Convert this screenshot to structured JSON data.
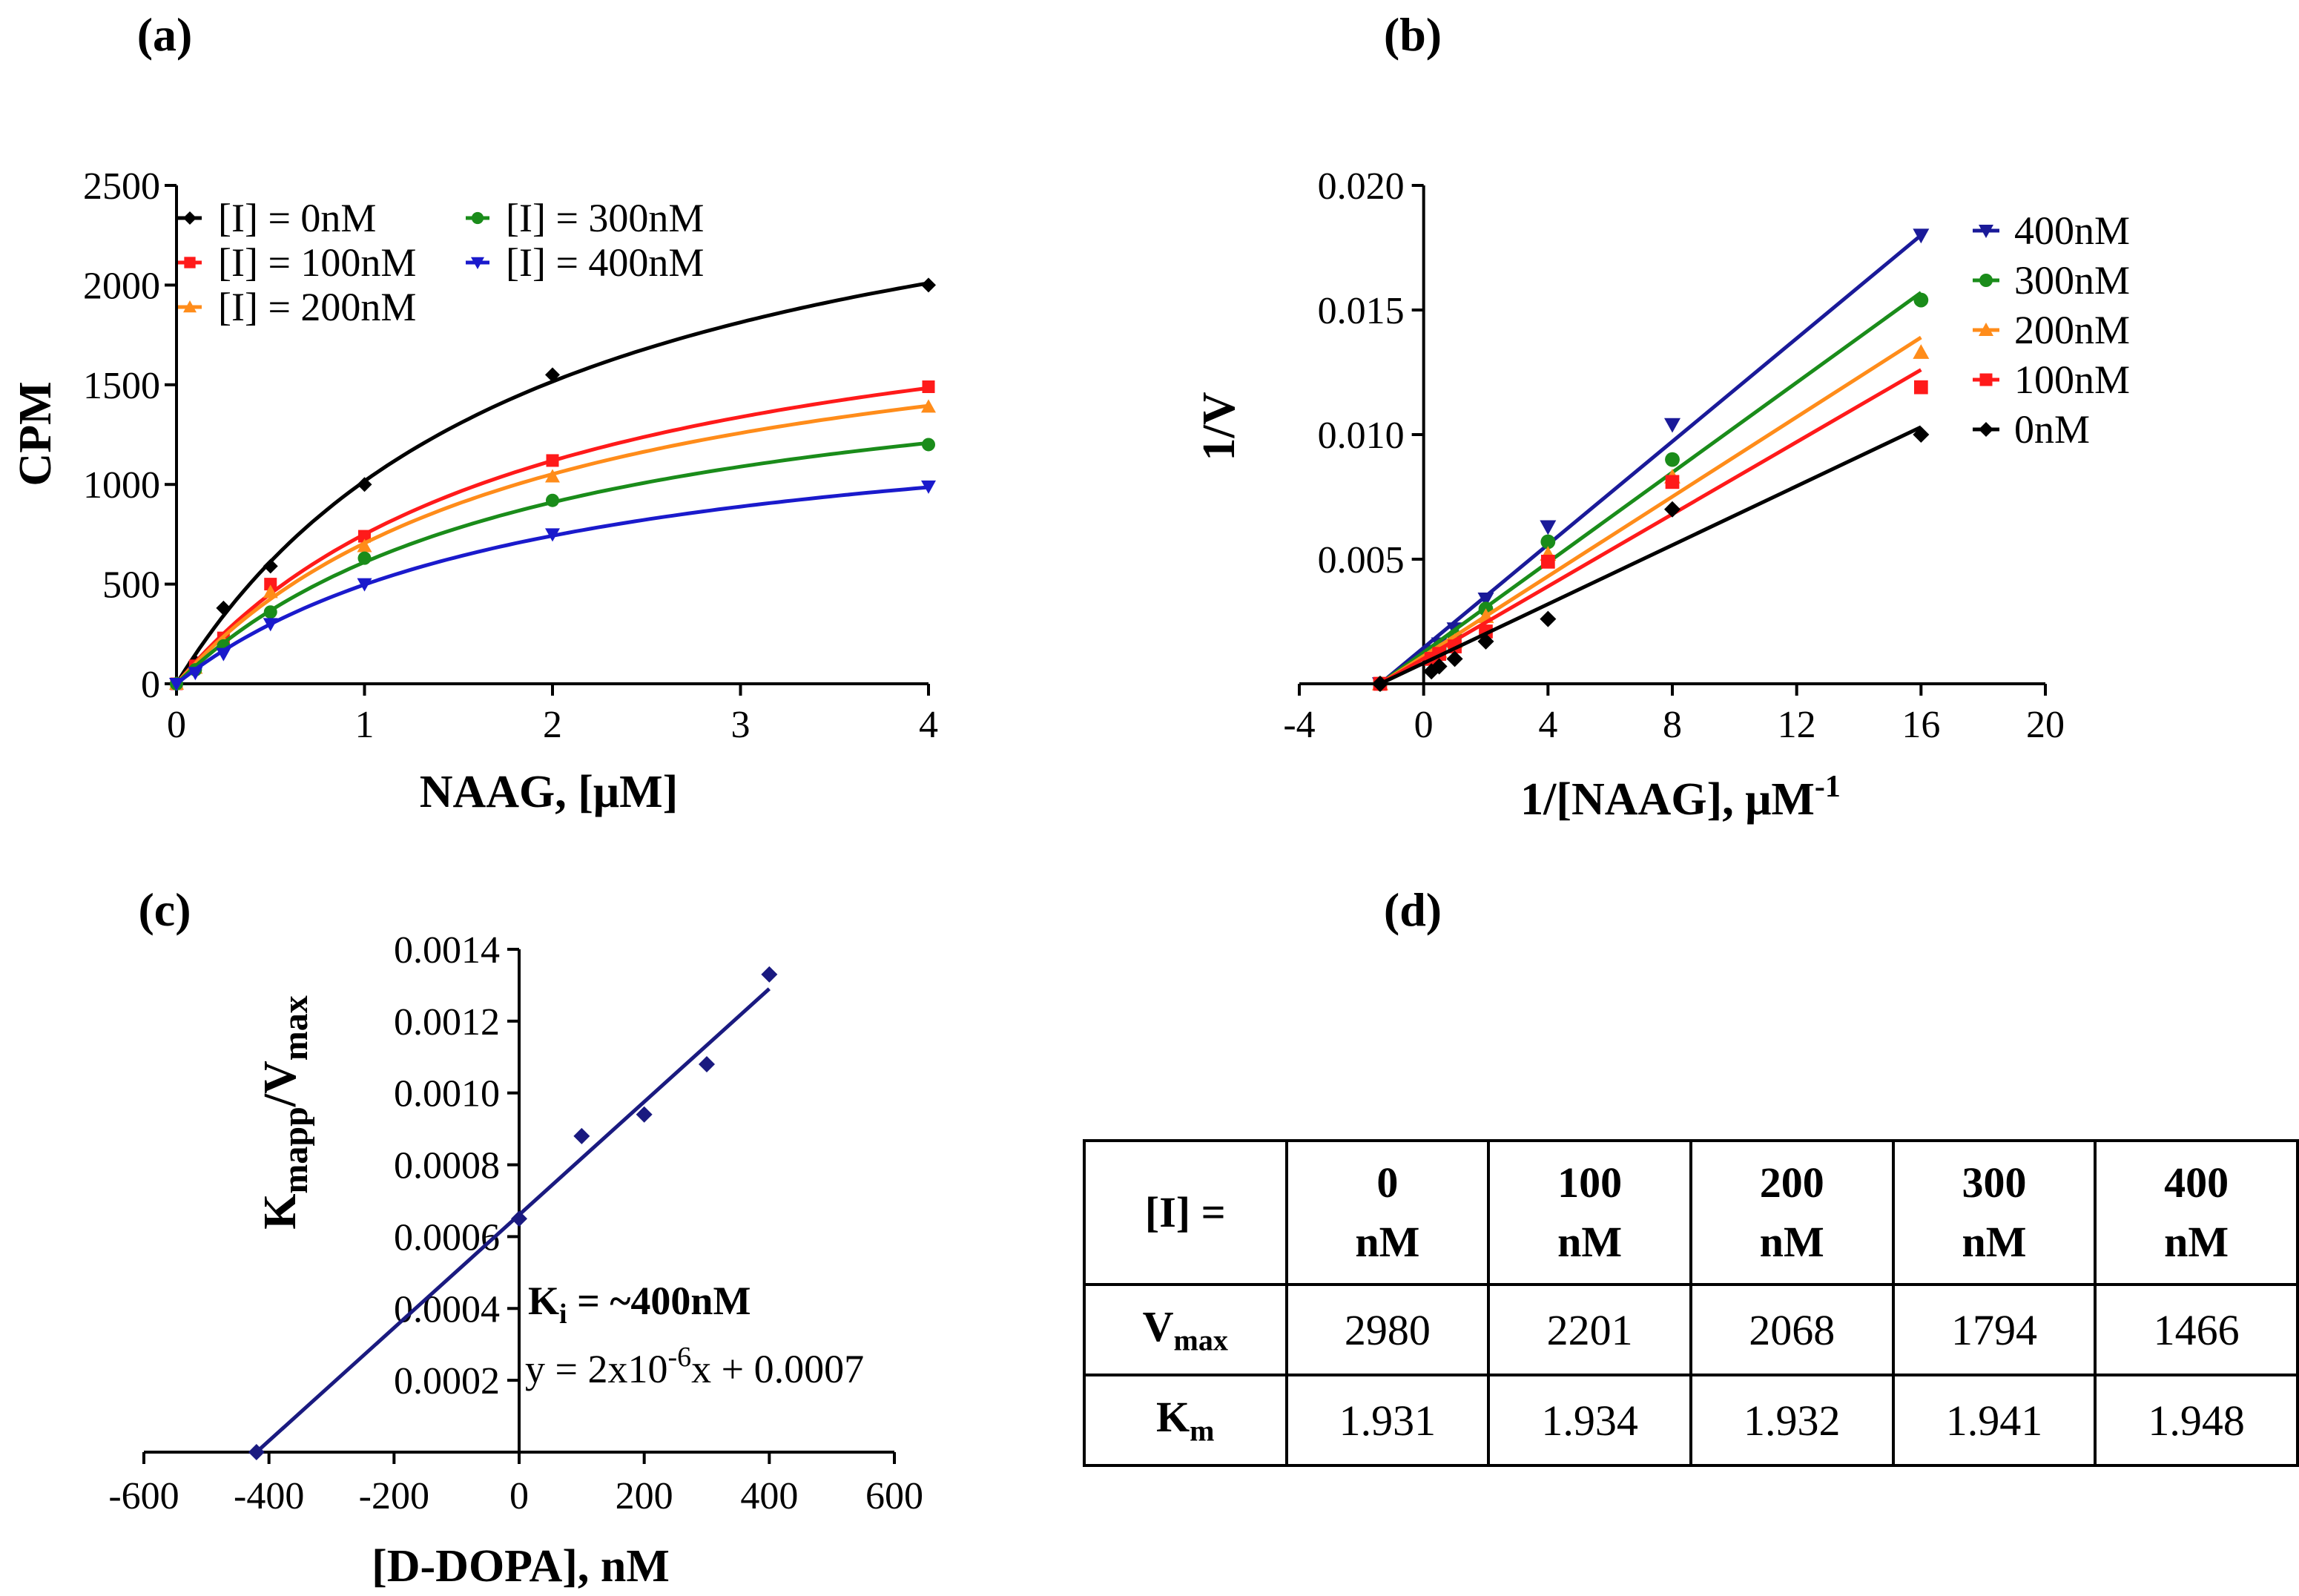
{
  "panels": {
    "a": "(a)",
    "b": "(b)",
    "c": "(c)",
    "d": "(d)"
  },
  "chart_data": [
    {
      "id": "a",
      "type": "line",
      "xlabel": "NAAG, [μM]",
      "ylabel": "CPM",
      "xlim": [
        0,
        4
      ],
      "ylim": [
        0,
        2500
      ],
      "xticks": [
        0,
        1,
        2,
        3,
        4
      ],
      "yticks": [
        0,
        500,
        1000,
        1500,
        2000,
        2500
      ],
      "legend_position": "top-left",
      "series": [
        {
          "name": "[I] = 0nM",
          "color": "#000000",
          "marker": "diamond",
          "x": [
            0,
            0.1,
            0.25,
            0.5,
            1,
            2,
            4
          ],
          "y": [
            0,
            110,
            380,
            590,
            1000,
            1550,
            2000
          ]
        },
        {
          "name": "[I] = 100nM",
          "color": "#ff1a1a",
          "marker": "square",
          "x": [
            0,
            0.1,
            0.25,
            0.5,
            1,
            2,
            4
          ],
          "y": [
            0,
            90,
            230,
            500,
            740,
            1120,
            1490
          ]
        },
        {
          "name": "[I] = 200nM",
          "color": "#ff8c1a",
          "marker": "triangle",
          "x": [
            0,
            0.1,
            0.25,
            0.5,
            1,
            2,
            4
          ],
          "y": [
            0,
            80,
            210,
            460,
            690,
            1040,
            1390
          ]
        },
        {
          "name": "[I] = 300nM",
          "color": "#1a8c1a",
          "marker": "circle",
          "x": [
            0,
            0.1,
            0.25,
            0.5,
            1,
            2,
            4
          ],
          "y": [
            0,
            70,
            190,
            360,
            630,
            920,
            1200
          ]
        },
        {
          "name": "[I] = 400nM",
          "color": "#1a1acc",
          "marker": "triangle-down",
          "x": [
            0,
            0.1,
            0.25,
            0.5,
            1,
            2,
            4
          ],
          "y": [
            0,
            55,
            150,
            300,
            500,
            750,
            990
          ]
        }
      ],
      "curves": [
        {
          "vmax": 2980,
          "km": 1.931
        },
        {
          "vmax": 2201,
          "km": 1.934
        },
        {
          "vmax": 2068,
          "km": 1.932
        },
        {
          "vmax": 1794,
          "km": 1.941
        },
        {
          "vmax": 1466,
          "km": 1.948
        }
      ]
    },
    {
      "id": "b",
      "type": "scatter",
      "xlabel": "1/[NAAG], μM",
      "xlabel_sup": "-1",
      "ylabel": "1/V",
      "xlim": [
        -4,
        20
      ],
      "ylim": [
        0,
        0.02
      ],
      "xticks": [
        -4,
        0,
        4,
        8,
        12,
        16,
        20
      ],
      "ytick_labels": [
        "0.005",
        "0.010",
        "0.015",
        "0.020"
      ],
      "yticks": [
        0.005,
        0.01,
        0.015,
        0.02
      ],
      "legend_position": "right",
      "series": [
        {
          "name": "400nM",
          "color": "#1a1a99",
          "marker": "triangle-down",
          "x": [
            -1.4,
            0.25,
            0.5,
            1,
            2,
            4,
            8,
            16
          ],
          "y": [
            0,
            0.0013,
            0.0016,
            0.0022,
            0.0034,
            0.0063,
            0.0104,
            0.018
          ],
          "line_end": [
            16,
            0.018
          ]
        },
        {
          "name": "300nM",
          "color": "#1a8c1a",
          "marker": "circle",
          "x": [
            -1.4,
            0.25,
            0.5,
            1,
            2,
            4,
            8,
            16
          ],
          "y": [
            0,
            0.0012,
            0.0014,
            0.0019,
            0.003,
            0.0057,
            0.009,
            0.0154
          ],
          "line_end": [
            16,
            0.0157
          ]
        },
        {
          "name": "200nM",
          "color": "#ff8c1a",
          "marker": "triangle",
          "x": [
            -1.4,
            0.25,
            0.5,
            1,
            2,
            4,
            8,
            16
          ],
          "y": [
            0,
            0.0011,
            0.0013,
            0.0017,
            0.0027,
            0.0052,
            0.0083,
            0.0133
          ],
          "line_end": [
            16,
            0.0139
          ]
        },
        {
          "name": "100nM",
          "color": "#ff1a1a",
          "marker": "square",
          "x": [
            -1.4,
            0.25,
            0.5,
            1,
            2,
            4,
            8,
            16
          ],
          "y": [
            0,
            0.001,
            0.0012,
            0.0015,
            0.0021,
            0.0049,
            0.0081,
            0.0119
          ],
          "line_end": [
            16,
            0.0126
          ]
        },
        {
          "name": "0nM",
          "color": "#000000",
          "marker": "diamond",
          "x": [
            -1.4,
            0.25,
            0.5,
            1,
            2,
            4,
            8,
            16
          ],
          "y": [
            0,
            0.0005,
            0.0007,
            0.001,
            0.0017,
            0.0026,
            0.007,
            0.01
          ],
          "line_end": [
            16,
            0.0103
          ]
        }
      ]
    },
    {
      "id": "c",
      "type": "scatter",
      "xlabel": "[D-DOPA], nM",
      "ylabel": "K",
      "ylabel_sub1": "mapp",
      "ylabel_mid": "/V",
      "ylabel_sub2": "max",
      "xlim": [
        -600,
        600
      ],
      "ylim": [
        0,
        0.0014
      ],
      "xticks": [
        -600,
        -400,
        -200,
        0,
        200,
        400,
        600
      ],
      "ytick_labels": [
        "0.0002",
        "0.0004",
        "0.0006",
        "0.0008",
        "0.0010",
        "0.0012",
        "0.0014"
      ],
      "yticks": [
        0.0002,
        0.0004,
        0.0006,
        0.0008,
        0.001,
        0.0012,
        0.0014
      ],
      "color": "#1a1a80",
      "points": {
        "x": [
          -420,
          0,
          100,
          200,
          300,
          400
        ],
        "y": [
          0,
          0.00065,
          0.00088,
          0.00094,
          0.00108,
          0.00133
        ]
      },
      "fit_line": {
        "x": [
          -420,
          400
        ],
        "y": [
          0,
          0.00129
        ]
      },
      "annotation_ki": "K",
      "annotation_ki_sub": "i",
      "annotation_ki_rest": " = ~400nM",
      "annotation_eq_a": "y = 2x10",
      "annotation_eq_sup": "-6",
      "annotation_eq_b": "x + 0.0007"
    }
  ],
  "table": {
    "corner": "[I] =",
    "headers": [
      [
        "0",
        "nM"
      ],
      [
        "100",
        "nM"
      ],
      [
        "200",
        "nM"
      ],
      [
        "300",
        "nM"
      ],
      [
        "400",
        "nM"
      ]
    ],
    "vmax_label": "V",
    "vmax_sub": "max",
    "km_label": "K",
    "km_sub": "m",
    "vmax": [
      "2980",
      "2201",
      "2068",
      "1794",
      "1466"
    ],
    "km": [
      "1.931",
      "1.934",
      "1.932",
      "1.941",
      "1.948"
    ]
  }
}
